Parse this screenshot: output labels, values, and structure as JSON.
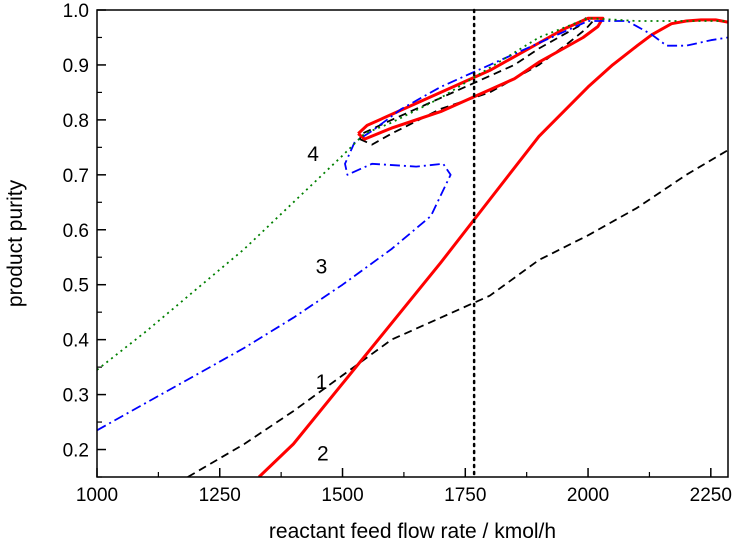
{
  "chart_data": {
    "type": "line",
    "xlabel": "reactant feed flow rate / kmol/h",
    "ylabel": "product purity",
    "xlim": [
      1000,
      2285
    ],
    "ylim": [
      0.15,
      1.0
    ],
    "xticks": [
      1000,
      1250,
      1500,
      1750,
      2000,
      2250
    ],
    "xtick_labels": [
      "1000",
      "1250",
      "1500",
      "1750",
      "2000",
      "2250"
    ],
    "yticks": [
      0.2,
      0.3,
      0.4,
      0.5,
      0.6,
      0.7,
      0.8,
      0.9,
      1.0
    ],
    "ytick_labels": [
      "0.2",
      "0.3",
      "0.4",
      "0.5",
      "0.6",
      "0.7",
      "0.8",
      "0.9",
      "1.0"
    ],
    "grid": false,
    "vline": {
      "x": 1768,
      "style": "dotted",
      "color": "#000000"
    },
    "series": [
      {
        "label": "1",
        "color": "#000000",
        "dash": "dashed",
        "label_pos": [
          1457,
          0.31
        ],
        "x": [
          1185,
          1300,
          1400,
          1500,
          1600,
          1700,
          1800,
          1900,
          2000,
          2100,
          2200,
          2285,
          null,
          1535,
          1560,
          1600,
          1700,
          1800,
          1900,
          1960,
          1995,
          2010,
          1995,
          1980,
          1950,
          1900,
          1850,
          1800,
          1700,
          1600,
          1540,
          1535
        ],
        "y": [
          0.15,
          0.21,
          0.27,
          0.335,
          0.4,
          0.44,
          0.48,
          0.545,
          0.59,
          0.64,
          0.7,
          0.745,
          null,
          0.765,
          0.755,
          0.775,
          0.82,
          0.85,
          0.9,
          0.94,
          0.965,
          0.98,
          0.985,
          0.97,
          0.955,
          0.93,
          0.9,
          0.88,
          0.84,
          0.8,
          0.775,
          0.765
        ]
      },
      {
        "label": "2",
        "color": "#ff0000",
        "dash": "solid",
        "label_pos": [
          1460,
          0.18
        ],
        "x": [
          1330,
          1400,
          1500,
          1600,
          1700,
          1800,
          1900,
          2000,
          2050,
          2100,
          2130,
          2150,
          2170,
          2200,
          2230,
          2260,
          2285,
          null,
          1532,
          1550,
          1600,
          1700,
          1800,
          1900,
          1950,
          2000,
          2030,
          2020,
          1990,
          1950,
          1900,
          1850,
          1800,
          1700,
          1600,
          1545,
          1532
        ],
        "y": [
          0.15,
          0.21,
          0.32,
          0.43,
          0.54,
          0.655,
          0.77,
          0.86,
          0.9,
          0.935,
          0.955,
          0.965,
          0.975,
          0.98,
          0.982,
          0.982,
          0.978,
          null,
          0.775,
          0.79,
          0.81,
          0.85,
          0.89,
          0.94,
          0.965,
          0.985,
          0.985,
          0.97,
          0.95,
          0.93,
          0.905,
          0.875,
          0.855,
          0.815,
          0.785,
          0.765,
          0.775
        ]
      },
      {
        "label": "3",
        "color": "#0000ff",
        "dash": "dashdot",
        "label_pos": [
          1457,
          0.52
        ],
        "x": [
          1000,
          1100,
          1200,
          1300,
          1400,
          1500,
          1600,
          1680,
          1720,
          1705,
          1650,
          1560,
          1510,
          1505,
          1525,
          1560,
          1620,
          1700,
          1800,
          1900,
          2000,
          2080,
          2130,
          2160,
          2200,
          2250,
          2285
        ],
        "y": [
          0.235,
          0.285,
          0.335,
          0.385,
          0.44,
          0.5,
          0.565,
          0.625,
          0.7,
          0.72,
          0.715,
          0.72,
          0.7,
          0.72,
          0.76,
          0.78,
          0.82,
          0.86,
          0.9,
          0.94,
          0.98,
          0.98,
          0.955,
          0.935,
          0.935,
          0.945,
          0.95
        ]
      },
      {
        "label": "4",
        "color": "#008000",
        "dash": "dotted",
        "label_pos": [
          1440,
          0.725
        ],
        "x": [
          1000,
          1100,
          1200,
          1300,
          1400,
          1500,
          1545,
          1600,
          1700,
          1800,
          1900,
          2000,
          2100,
          2200,
          2285
        ],
        "y": [
          0.345,
          0.415,
          0.49,
          0.565,
          0.65,
          0.735,
          0.775,
          0.795,
          0.84,
          0.895,
          0.95,
          0.985,
          0.98,
          0.98,
          0.98
        ]
      }
    ]
  }
}
